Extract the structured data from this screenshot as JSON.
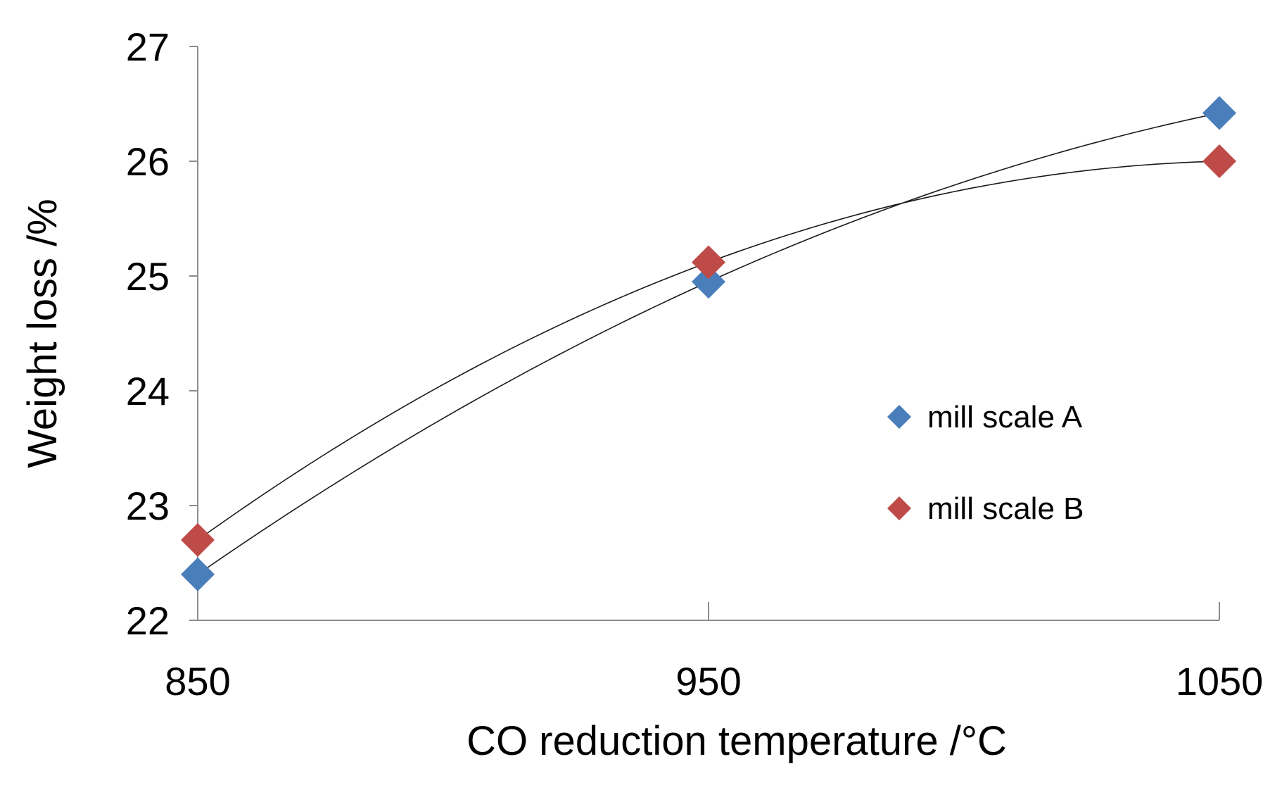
{
  "chart_data": {
    "type": "scatter",
    "title": "",
    "xlabel": "CO reduction temperature /°C",
    "ylabel": "Weight loss /%",
    "x": [
      850,
      950,
      1050
    ],
    "xlim": [
      850,
      1050
    ],
    "ylim": [
      22,
      27
    ],
    "x_ticks": [
      "850",
      "950",
      "1050"
    ],
    "y_ticks": [
      "22",
      "23",
      "24",
      "25",
      "26",
      "27"
    ],
    "grid": false,
    "legend_position": "right-middle",
    "trendline": "polynomial order 2",
    "series": [
      {
        "name": "mill scale A",
        "color": "#4a7ebb",
        "marker": "diamond",
        "values": [
          22.4,
          24.95,
          26.42
        ]
      },
      {
        "name": "mill scale B",
        "color": "#be4b48",
        "marker": "diamond",
        "values": [
          22.7,
          25.12,
          26.0
        ]
      }
    ]
  }
}
